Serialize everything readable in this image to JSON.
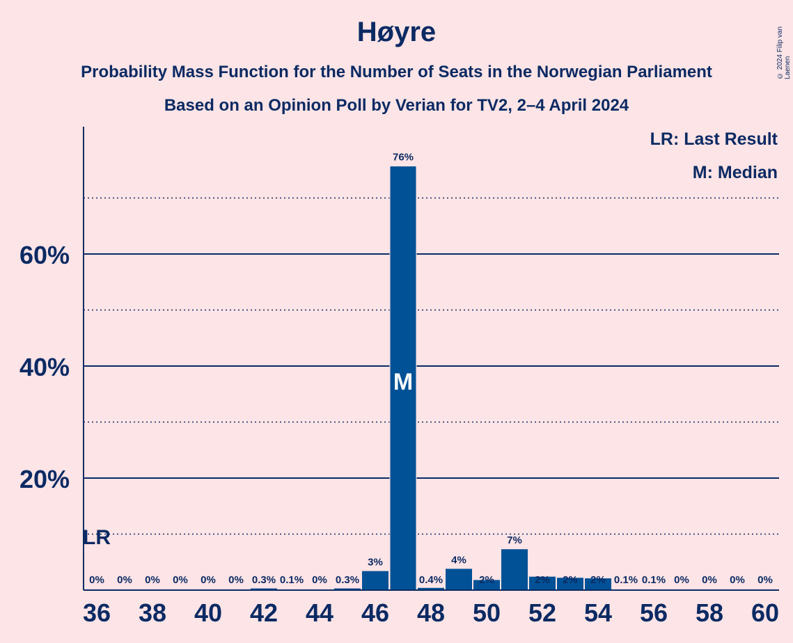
{
  "header": {
    "title": "Høyre",
    "subtitle1": "Probability Mass Function for the Number of Seats in the Norwegian Parliament",
    "subtitle2": "Based on an Opinion Poll by Verian for TV2, 2–4 April 2024",
    "copyright": "© 2024 Filip van Laenen"
  },
  "legend": {
    "last_result": "LR: Last Result",
    "median": "M: Median"
  },
  "colors": {
    "background": "#fde4e6",
    "bar": "#005195",
    "text": "#0b2a63"
  },
  "chart_data": {
    "type": "bar",
    "title": "Høyre",
    "x": [
      36,
      37,
      38,
      39,
      40,
      41,
      42,
      43,
      44,
      45,
      46,
      47,
      48,
      49,
      50,
      51,
      52,
      53,
      54,
      55,
      56,
      57,
      58,
      59,
      60
    ],
    "values": [
      0,
      0,
      0,
      0,
      0,
      0,
      0.3,
      0.1,
      0,
      0.3,
      3.4,
      75.7,
      0.4,
      3.8,
      1.8,
      7.3,
      2.4,
      2.2,
      2.1,
      0.1,
      0.1,
      0,
      0,
      0,
      0
    ],
    "data_labels": [
      "0%",
      "0%",
      "0%",
      "0%",
      "0%",
      "0%",
      "0.3%",
      "0.1%",
      "0%",
      "0.3%",
      "3%",
      "76%",
      "0.4%",
      "4%",
      "2%",
      "7%",
      "2%",
      "2%",
      "2%",
      "0.1%",
      "0.1%",
      "0%",
      "0%",
      "0%",
      "0%"
    ],
    "x_tick_labels": [
      "36",
      "38",
      "40",
      "42",
      "44",
      "46",
      "48",
      "50",
      "52",
      "54",
      "56",
      "58",
      "60"
    ],
    "y_ticks": [
      {
        "value": 20,
        "label": "20%"
      },
      {
        "value": 40,
        "label": "40%"
      },
      {
        "value": 60,
        "label": "60%"
      }
    ],
    "y_minor_gridlines": [
      10,
      30,
      50,
      70
    ],
    "ylim": [
      0,
      82
    ],
    "last_result": {
      "x": 36,
      "label": "LR",
      "level": 10
    },
    "median": {
      "x": 47,
      "label": "M"
    },
    "legend_position": "top-right"
  }
}
